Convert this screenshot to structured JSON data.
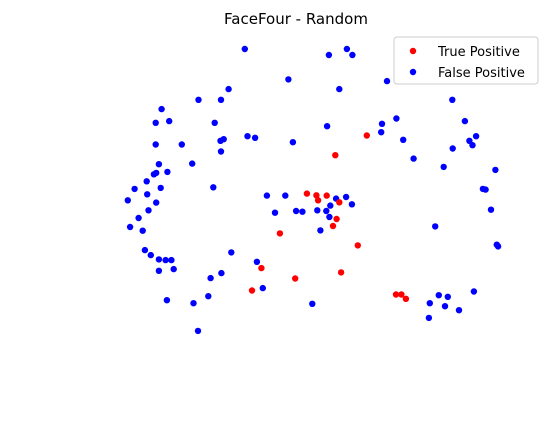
{
  "chart_data": {
    "type": "scatter",
    "title": "FaceFour - Random",
    "xlabel": "",
    "ylabel": "",
    "axes_visible": false,
    "grid": false,
    "legend_position": "top-right",
    "xlim": [
      0,
      1
    ],
    "ylim": [
      0,
      1
    ],
    "series": [
      {
        "name": "True Positive",
        "color": "#ff0000",
        "points": [
          [
            0.522,
            0.567
          ],
          [
            0.543,
            0.562
          ],
          [
            0.547,
            0.547
          ],
          [
            0.566,
            0.561
          ],
          [
            0.585,
            0.682
          ],
          [
            0.655,
            0.741
          ],
          [
            0.594,
            0.541
          ],
          [
            0.588,
            0.491
          ],
          [
            0.58,
            0.47
          ],
          [
            0.462,
            0.448
          ],
          [
            0.635,
            0.412
          ],
          [
            0.421,
            0.344
          ],
          [
            0.496,
            0.313
          ],
          [
            0.598,
            0.331
          ],
          [
            0.4,
            0.277
          ],
          [
            0.72,
            0.265
          ],
          [
            0.732,
            0.265
          ],
          [
            0.742,
            0.252
          ]
        ]
      },
      {
        "name": "False Positive",
        "color": "#0000ff",
        "points": [
          [
            0.384,
            1.0
          ],
          [
            0.611,
            1.0
          ],
          [
            0.571,
            0.982
          ],
          [
            0.623,
            0.982
          ],
          [
            0.7,
            0.904
          ],
          [
            0.481,
            0.909
          ],
          [
            0.348,
            0.88
          ],
          [
            0.594,
            0.88
          ],
          [
            0.281,
            0.848
          ],
          [
            0.331,
            0.848
          ],
          [
            0.199,
            0.82
          ],
          [
            0.216,
            0.784
          ],
          [
            0.186,
            0.779
          ],
          [
            0.317,
            0.779
          ],
          [
            0.721,
            0.792
          ],
          [
            0.689,
            0.776
          ],
          [
            0.567,
            0.769
          ],
          [
            0.687,
            0.751
          ],
          [
            0.845,
            0.848
          ],
          [
            0.873,
            0.784
          ],
          [
            0.407,
            0.734
          ],
          [
            0.491,
            0.721
          ],
          [
            0.736,
            0.728
          ],
          [
            0.33,
            0.725
          ],
          [
            0.337,
            0.73
          ],
          [
            0.39,
            0.739
          ],
          [
            0.898,
            0.739
          ],
          [
            0.883,
            0.725
          ],
          [
            0.186,
            0.714
          ],
          [
            0.244,
            0.714
          ],
          [
            0.331,
            0.693
          ],
          [
            0.89,
            0.712
          ],
          [
            0.759,
            0.672
          ],
          [
            0.846,
            0.702
          ],
          [
            0.267,
            0.657
          ],
          [
            0.193,
            0.655
          ],
          [
            0.212,
            0.632
          ],
          [
            0.187,
            0.629
          ],
          [
            0.182,
            0.625
          ],
          [
            0.826,
            0.647
          ],
          [
            0.941,
            0.638
          ],
          [
            0.166,
            0.604
          ],
          [
            0.314,
            0.586
          ],
          [
            0.139,
            0.581
          ],
          [
            0.167,
            0.565
          ],
          [
            0.124,
            0.547
          ],
          [
            0.913,
            0.581
          ],
          [
            0.919,
            0.579
          ],
          [
            0.433,
            0.561
          ],
          [
            0.474,
            0.561
          ],
          [
            0.587,
            0.552
          ],
          [
            0.609,
            0.557
          ],
          [
            0.622,
            0.535
          ],
          [
            0.187,
            0.54
          ],
          [
            0.17,
            0.517
          ],
          [
            0.451,
            0.51
          ],
          [
            0.498,
            0.515
          ],
          [
            0.512,
            0.513
          ],
          [
            0.545,
            0.517
          ],
          [
            0.565,
            0.515
          ],
          [
            0.574,
            0.531
          ],
          [
            0.931,
            0.519
          ],
          [
            0.148,
            0.494
          ],
          [
            0.572,
            0.497
          ],
          [
            0.807,
            0.469
          ],
          [
            0.552,
            0.457
          ],
          [
            0.944,
            0.414
          ],
          [
            0.162,
            0.398
          ],
          [
            0.175,
            0.383
          ],
          [
            0.193,
            0.37
          ],
          [
            0.947,
            0.409
          ],
          [
            0.208,
            0.368
          ],
          [
            0.221,
            0.368
          ],
          [
            0.354,
            0.391
          ],
          [
            0.411,
            0.363
          ],
          [
            0.193,
            0.336
          ],
          [
            0.226,
            0.341
          ],
          [
            0.332,
            0.329
          ],
          [
            0.308,
            0.314
          ],
          [
            0.424,
            0.284
          ],
          [
            0.893,
            0.274
          ],
          [
            0.815,
            0.263
          ],
          [
            0.835,
            0.258
          ],
          [
            0.303,
            0.26
          ],
          [
            0.211,
            0.248
          ],
          [
            0.534,
            0.237
          ],
          [
            0.795,
            0.239
          ],
          [
            0.829,
            0.23
          ],
          [
            0.27,
            0.239
          ],
          [
            0.86,
            0.218
          ],
          [
            0.793,
            0.195
          ],
          [
            0.28,
            0.156
          ],
          [
            0.129,
            0.467
          ],
          [
            0.157,
            0.456
          ],
          [
            0.197,
            0.584
          ]
        ]
      }
    ]
  }
}
